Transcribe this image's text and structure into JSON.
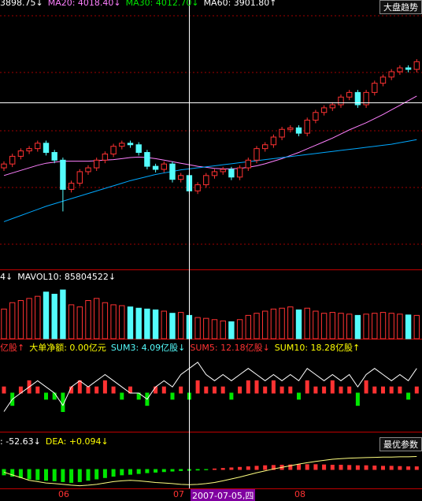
{
  "chart_data": [
    {
      "type": "candlestick",
      "legend_texts": [
        {
          "text": "3898.75↓",
          "color": "#ffffff"
        },
        {
          "text": "MA20: 4018.40↓",
          "color": "#ff80ff"
        },
        {
          "text": "MA30: 4012.70↓",
          "color": "#00e600"
        },
        {
          "text": "MA60: 3901.80↑",
          "color": "#ffffff"
        }
      ],
      "button": "大盘趋势",
      "up_color": "#ff3232",
      "down_color": "#54fcfc",
      "open": [
        3820,
        3835,
        3865,
        3886,
        3895,
        3916,
        3880,
        3850,
        3736,
        3760,
        3805,
        3820,
        3850,
        3874,
        3904,
        3916,
        3910,
        3880,
        3826,
        3814,
        3835,
        3775,
        3790,
        3730,
        3754,
        3790,
        3805,
        3814,
        3784,
        3820,
        3850,
        3895,
        3910,
        3940,
        3970,
        3976,
        3955,
        4006,
        4036,
        4054,
        4066,
        4096,
        4114,
        4066,
        4114,
        4150,
        4174,
        4195,
        4210,
        4204
      ],
      "high": [
        3845,
        3875,
        3896,
        3905,
        3926,
        3926,
        3890,
        3860,
        3770,
        3815,
        3830,
        3860,
        3884,
        3914,
        3926,
        3926,
        3920,
        3890,
        3836,
        3845,
        3845,
        3800,
        3800,
        3764,
        3800,
        3815,
        3824,
        3824,
        3830,
        3860,
        3905,
        3920,
        3950,
        3980,
        3986,
        3986,
        4016,
        4046,
        4064,
        4076,
        4106,
        4124,
        4124,
        4124,
        4160,
        4184,
        4205,
        4220,
        4220,
        4244
      ],
      "low": [
        3808,
        3823,
        3853,
        3874,
        3883,
        3868,
        3838,
        3650,
        3724,
        3748,
        3793,
        3808,
        3838,
        3862,
        3892,
        3898,
        3868,
        3814,
        3802,
        3802,
        3763,
        3763,
        3718,
        3718,
        3742,
        3778,
        3793,
        3772,
        3772,
        3808,
        3838,
        3883,
        3898,
        3928,
        3958,
        3943,
        3943,
        3994,
        4024,
        4042,
        4054,
        4084,
        4054,
        4054,
        4102,
        4138,
        4162,
        4183,
        4192,
        4192
      ],
      "close": [
        3835,
        3865,
        3886,
        3895,
        3916,
        3880,
        3850,
        3736,
        3760,
        3805,
        3820,
        3850,
        3874,
        3904,
        3916,
        3910,
        3880,
        3826,
        3814,
        3835,
        3775,
        3790,
        3730,
        3754,
        3790,
        3805,
        3814,
        3784,
        3820,
        3850,
        3895,
        3910,
        3940,
        3970,
        3976,
        3955,
        4006,
        4036,
        4054,
        4066,
        4096,
        4114,
        4066,
        4114,
        4150,
        4174,
        4195,
        4210,
        4204,
        4234
      ],
      "ma_lines": [
        {
          "color": "#ff80ff",
          "values": [
            3790,
            3800,
            3810,
            3820,
            3830,
            3838,
            3842,
            3846,
            3846,
            3846,
            3846,
            3848,
            3850,
            3852,
            3856,
            3860,
            3862,
            3860,
            3856,
            3850,
            3844,
            3838,
            3832,
            3826,
            3822,
            3818,
            3816,
            3816,
            3818,
            3822,
            3828,
            3836,
            3846,
            3856,
            3868,
            3880,
            3894,
            3908,
            3922,
            3936,
            3952,
            3968,
            3982,
            3996,
            4012,
            4028,
            4046,
            4064,
            4082,
            4100
          ]
        },
        {
          "color": "#00a8ff",
          "values": [
            3610,
            3622,
            3634,
            3646,
            3658,
            3670,
            3680,
            3690,
            3700,
            3710,
            3720,
            3730,
            3740,
            3750,
            3760,
            3770,
            3778,
            3786,
            3794,
            3800,
            3806,
            3812,
            3816,
            3820,
            3824,
            3828,
            3832,
            3836,
            3840,
            3844,
            3848,
            3852,
            3856,
            3860,
            3864,
            3868,
            3872,
            3876,
            3880,
            3884,
            3888,
            3892,
            3896,
            3900,
            3904,
            3908,
            3912,
            3918,
            3924,
            3930
          ]
        }
      ],
      "ylim": [
        3430,
        4450
      ]
    },
    {
      "type": "bar",
      "legend_texts": [
        {
          "text": "4↓",
          "color": "#ffffff"
        },
        {
          "text": "MAVOL10: 85804522↓",
          "color": "#ffffff"
        }
      ],
      "values": [
        70000000,
        85000000,
        90000000,
        95000000,
        100000000,
        110000000,
        105000000,
        115000000,
        80000000,
        75000000,
        90000000,
        95000000,
        85000000,
        80000000,
        78000000,
        75000000,
        72000000,
        70000000,
        68000000,
        65000000,
        60000000,
        62000000,
        55000000,
        50000000,
        48000000,
        45000000,
        42000000,
        40000000,
        45000000,
        55000000,
        60000000,
        65000000,
        70000000,
        72000000,
        75000000,
        68000000,
        72000000,
        65000000,
        60000000,
        62000000,
        60000000,
        58000000,
        55000000,
        58000000,
        60000000,
        62000000,
        60000000,
        58000000,
        56000000,
        55000000
      ],
      "ylim": [
        0,
        130000000
      ]
    },
    {
      "type": "bar",
      "legend_texts": [
        {
          "text": "亿股↑",
          "color": "#ff3232"
        },
        {
          "text": "大单净额: 0.00亿元",
          "color": "#ffff00"
        },
        {
          "text": "SUM3: 4.09亿股↓",
          "color": "#54fcfc"
        },
        {
          "text": "SUM5: 12.18亿股↓",
          "color": "#ff3232"
        },
        {
          "text": "SUM10: 18.28亿股↑",
          "color": "#ffff00"
        }
      ],
      "values": [
        1,
        -2,
        1,
        2,
        1,
        -1,
        -1,
        -3,
        1,
        2,
        1,
        1,
        2,
        1,
        -1,
        1,
        -1,
        -2,
        1,
        1,
        -1,
        1,
        -1,
        2,
        1,
        1,
        1,
        -1,
        1,
        2,
        2,
        1,
        2,
        1,
        1,
        -1,
        2,
        1,
        1,
        2,
        1,
        1,
        -2,
        2,
        1,
        1,
        1,
        1,
        -1,
        1
      ],
      "line": {
        "color": "#ffffff",
        "values": [
          -3,
          -1,
          0,
          1,
          2,
          1,
          0,
          -2,
          1,
          2,
          1,
          2,
          3,
          2,
          1,
          0,
          0,
          -1,
          1,
          2,
          1,
          3,
          4,
          5,
          3,
          2,
          3,
          2,
          3,
          4,
          3,
          2,
          3,
          2,
          3,
          2,
          4,
          3,
          2,
          3,
          2,
          3,
          1,
          3,
          4,
          3,
          2,
          3,
          2,
          4
        ]
      },
      "ylim": [
        -6,
        6
      ]
    },
    {
      "type": "bar",
      "legend_texts": [
        {
          "text": ": -52.63↓",
          "color": "#ffffff"
        },
        {
          "text": "DEA: +0.094↓",
          "color": "#ffff00"
        }
      ],
      "button": "最优参数",
      "values": [
        -20,
        -25,
        -30,
        -35,
        -38,
        -40,
        -42,
        -45,
        -48,
        -45,
        -40,
        -35,
        -30,
        -25,
        -20,
        -18,
        -15,
        -12,
        -10,
        -8,
        -6,
        -4,
        -3,
        -2,
        -1,
        2,
        4,
        6,
        8,
        10,
        12,
        14,
        15,
        16,
        17,
        18,
        18,
        18,
        17,
        16,
        16,
        15,
        14,
        14,
        13,
        12,
        12,
        11,
        10,
        10
      ],
      "line": {
        "color": "#ffff80",
        "values": [
          -10,
          -20,
          -30,
          -40,
          -45,
          -50,
          -52,
          -55,
          -58,
          -60,
          -58,
          -55,
          -50,
          -45,
          -42,
          -40,
          -42,
          -45,
          -48,
          -50,
          -52,
          -55,
          -56,
          -55,
          -52,
          -48,
          -42,
          -35,
          -28,
          -20,
          -12,
          -5,
          2,
          8,
          14,
          20,
          25,
          30,
          34,
          38,
          40,
          42,
          43,
          44,
          45,
          46,
          46,
          47,
          47,
          48
        ]
      },
      "ylim": [
        -70,
        70
      ]
    }
  ],
  "x_axis_labels": [
    "06",
    "07",
    "2007-07-05,四",
    "08"
  ]
}
